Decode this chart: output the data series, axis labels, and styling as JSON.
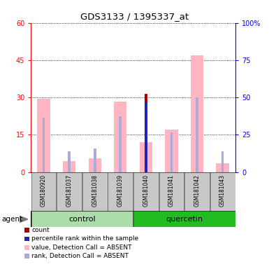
{
  "title": "GDS3133 / 1395337_at",
  "samples": [
    "GSM180920",
    "GSM181037",
    "GSM181038",
    "GSM181039",
    "GSM181040",
    "GSM181041",
    "GSM181042",
    "GSM181043"
  ],
  "ylim_left": [
    0,
    60
  ],
  "ylim_right": [
    0,
    100
  ],
  "yticks_left": [
    0,
    15,
    30,
    45,
    60
  ],
  "yticks_right": [
    0,
    25,
    50,
    75,
    100
  ],
  "pink_bar_heights": [
    29.5,
    4.5,
    5.5,
    28.5,
    12.0,
    17.0,
    47.0,
    3.5
  ],
  "light_blue_bar_heights": [
    22.0,
    8.5,
    9.5,
    22.5,
    0.0,
    16.0,
    30.0,
    8.5
  ],
  "dark_red_bar_heights": [
    0.0,
    0.0,
    0.0,
    0.0,
    31.5,
    0.0,
    0.0,
    0.0
  ],
  "dark_blue_bar_heights": [
    0.0,
    0.0,
    0.0,
    0.0,
    28.0,
    0.0,
    0.0,
    0.0
  ],
  "light_pink_color": "#FFB6C1",
  "light_blue_color": "#AAAADD",
  "dark_red_color": "#AA0000",
  "dark_blue_color": "#2222BB",
  "control_bg_light": "#AADDAA",
  "control_bg_dark": "#55CC55",
  "quercetin_bg_dark": "#22BB22",
  "sample_bg": "#C8C8C8",
  "legend_items": [
    {
      "label": "count",
      "color": "#AA0000"
    },
    {
      "label": "percentile rank within the sample",
      "color": "#2222BB"
    },
    {
      "label": "value, Detection Call = ABSENT",
      "color": "#FFB6C1"
    },
    {
      "label": "rank, Detection Call = ABSENT",
      "color": "#AAAADD"
    }
  ]
}
